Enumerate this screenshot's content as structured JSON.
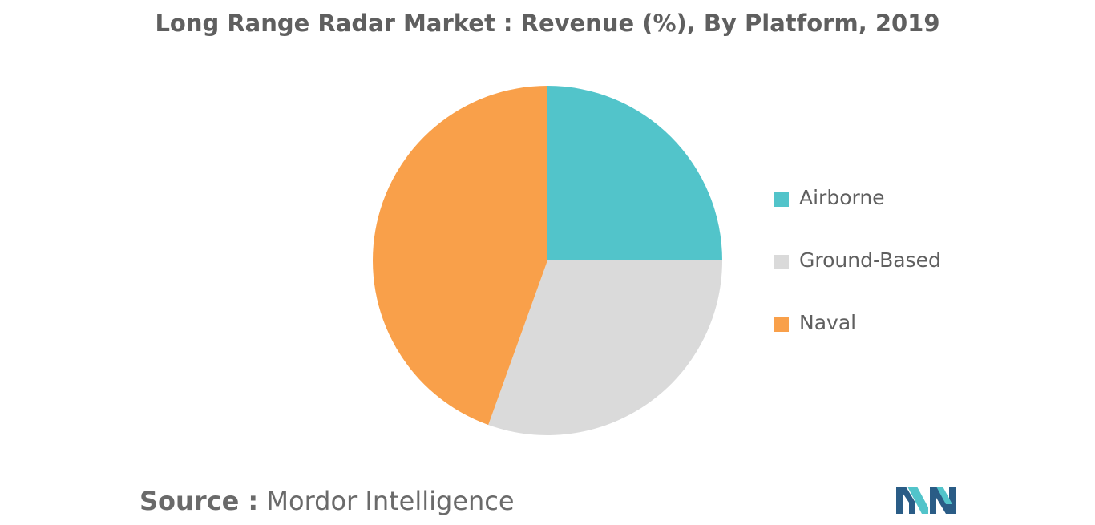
{
  "chart_data": {
    "type": "pie",
    "title": "Long Range Radar Market : Revenue (%), By Platform, 2019",
    "categories": [
      "Airborne",
      "Ground-Based",
      "Naval"
    ],
    "values": [
      25,
      30.5,
      44.5
    ],
    "colors": [
      "#52c4ca",
      "#dadada",
      "#f9a04a"
    ],
    "legend_position": "right",
    "start_angle": "top, clockwise"
  },
  "source": {
    "prefix": "Source :",
    "text": "Mordor Intelligence"
  },
  "logo": {
    "name": "mordor-intelligence-logo",
    "colors": [
      "#2a5c86",
      "#52c4ca"
    ]
  }
}
